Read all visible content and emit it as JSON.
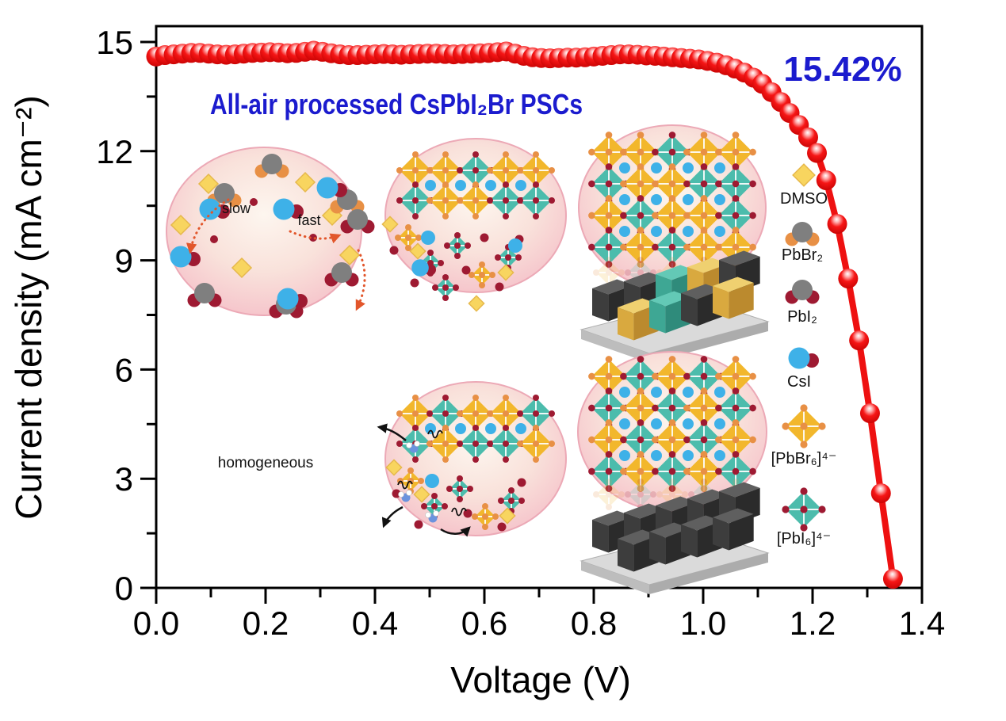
{
  "figure": {
    "inset_title": "All-air processed CsPbI₂Br PSCs",
    "efficiency_label": "15.42%"
  },
  "axes": {
    "x_label": "Voltage (V)",
    "y_label": "Current density (mA cm⁻²)",
    "x_tick_labels": [
      "0.0",
      "0.2",
      "0.4",
      "0.6",
      "0.8",
      "1.0",
      "1.2",
      "1.4"
    ],
    "y_tick_labels": [
      "0",
      "3",
      "6",
      "9",
      "12",
      "15"
    ]
  },
  "inset": {
    "annotations": {
      "slow": "slow",
      "fast": "fast",
      "homogeneous": "homogeneous"
    }
  },
  "legend": {
    "items": [
      {
        "label": "DMSO",
        "icon": "dmso-diamond"
      },
      {
        "label": "PbBr₂",
        "icon": "pbbr2-molecule"
      },
      {
        "label": "PbI₂",
        "icon": "pbi2-molecule"
      },
      {
        "label": "CsI",
        "icon": "csi-pair"
      },
      {
        "label": "[PbBr₆]⁴⁻",
        "icon": "pbbr6-octahedron"
      },
      {
        "label": "[PbI₆]⁴⁻",
        "icon": "pbi6-octahedron"
      }
    ]
  },
  "colors": {
    "curve_red": "#EE1111",
    "title_blue": "#1B1BCE",
    "axis_black": "#000000",
    "gold_octahedron": "#F2B72C",
    "teal_octahedron": "#4CBCAC",
    "orange_br": "#E89045",
    "maroon_i": "#9E1A32",
    "cs_blue": "#3EB1E8",
    "pb_gray": "#7F7F7F",
    "dmso_yellow": "#F8D55F",
    "bubble_pink": "#F2BAC3"
  },
  "chart_data": {
    "type": "line",
    "series_name": "J-V curve",
    "xlabel": "Voltage (V)",
    "ylabel": "Current density (mA cm⁻²)",
    "xlim": [
      0.0,
      1.4
    ],
    "ylim": [
      0,
      15
    ],
    "x_major_ticks": [
      0.0,
      0.2,
      0.4,
      0.6,
      0.8,
      1.0,
      1.2,
      1.4
    ],
    "y_major_ticks": [
      0,
      3,
      6,
      9,
      12,
      15
    ],
    "grid": false,
    "annotation": "15.42%",
    "points": [
      [
        0.0,
        14.6
      ],
      [
        0.016,
        14.64
      ],
      [
        0.032,
        14.66
      ],
      [
        0.048,
        14.68
      ],
      [
        0.064,
        14.7
      ],
      [
        0.08,
        14.7
      ],
      [
        0.096,
        14.68
      ],
      [
        0.112,
        14.66
      ],
      [
        0.128,
        14.65
      ],
      [
        0.144,
        14.66
      ],
      [
        0.16,
        14.68
      ],
      [
        0.176,
        14.7
      ],
      [
        0.192,
        14.71
      ],
      [
        0.208,
        14.72
      ],
      [
        0.224,
        14.71
      ],
      [
        0.24,
        14.69
      ],
      [
        0.256,
        14.7
      ],
      [
        0.272,
        14.73
      ],
      [
        0.288,
        14.76
      ],
      [
        0.304,
        14.73
      ],
      [
        0.32,
        14.69
      ],
      [
        0.336,
        14.66
      ],
      [
        0.352,
        14.64
      ],
      [
        0.368,
        14.64
      ],
      [
        0.384,
        14.65
      ],
      [
        0.4,
        14.66
      ],
      [
        0.416,
        14.67
      ],
      [
        0.432,
        14.66
      ],
      [
        0.448,
        14.65
      ],
      [
        0.464,
        14.66
      ],
      [
        0.48,
        14.67
      ],
      [
        0.496,
        14.68
      ],
      [
        0.512,
        14.68
      ],
      [
        0.528,
        14.67
      ],
      [
        0.544,
        14.66
      ],
      [
        0.56,
        14.67
      ],
      [
        0.576,
        14.68
      ],
      [
        0.592,
        14.69
      ],
      [
        0.608,
        14.7
      ],
      [
        0.624,
        14.72
      ],
      [
        0.64,
        14.74
      ],
      [
        0.656,
        14.68
      ],
      [
        0.672,
        14.62
      ],
      [
        0.688,
        14.58
      ],
      [
        0.704,
        14.56
      ],
      [
        0.72,
        14.55
      ],
      [
        0.736,
        14.56
      ],
      [
        0.752,
        14.57
      ],
      [
        0.768,
        14.57
      ],
      [
        0.784,
        14.58
      ],
      [
        0.8,
        14.6
      ],
      [
        0.816,
        14.62
      ],
      [
        0.832,
        14.64
      ],
      [
        0.848,
        14.66
      ],
      [
        0.864,
        14.66
      ],
      [
        0.88,
        14.65
      ],
      [
        0.896,
        14.63
      ],
      [
        0.912,
        14.62
      ],
      [
        0.928,
        14.6
      ],
      [
        0.944,
        14.58
      ],
      [
        0.96,
        14.56
      ],
      [
        0.976,
        14.54
      ],
      [
        0.992,
        14.52
      ],
      [
        1.008,
        14.48
      ],
      [
        1.025,
        14.43
      ],
      [
        1.042,
        14.36
      ],
      [
        1.058,
        14.27
      ],
      [
        1.075,
        14.16
      ],
      [
        1.092,
        14.02
      ],
      [
        1.108,
        13.85
      ],
      [
        1.125,
        13.62
      ],
      [
        1.142,
        13.35
      ],
      [
        1.158,
        13.05
      ],
      [
        1.175,
        12.72
      ],
      [
        1.192,
        12.38
      ],
      [
        1.208,
        11.95
      ],
      [
        1.225,
        11.2
      ],
      [
        1.245,
        10.0
      ],
      [
        1.265,
        8.5
      ],
      [
        1.285,
        6.8
      ],
      [
        1.305,
        4.8
      ],
      [
        1.325,
        2.6
      ],
      [
        1.347,
        0.25
      ]
    ]
  }
}
